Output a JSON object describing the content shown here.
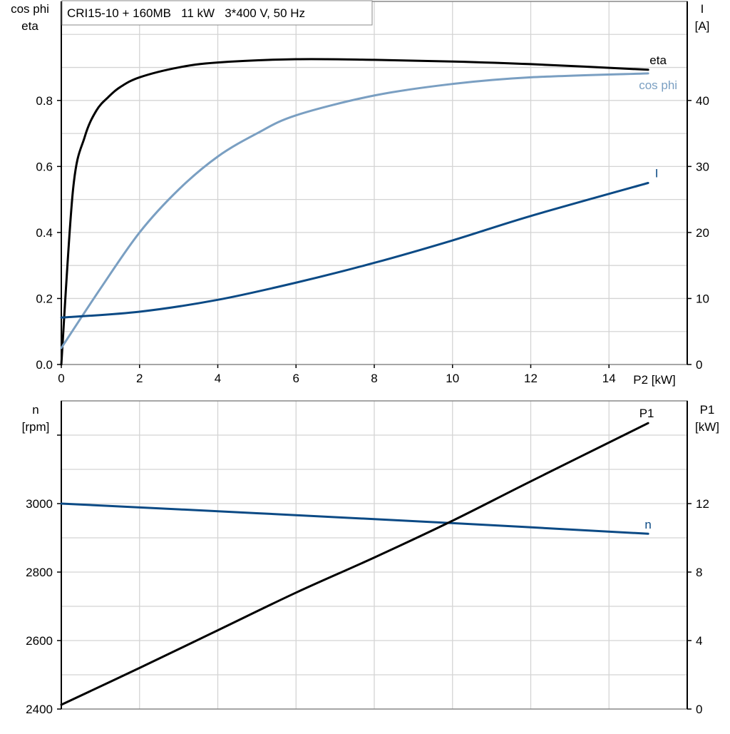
{
  "chart_data": [
    {
      "type": "line",
      "title": "CRI15-10 + 160MB   11 kW   3*400 V, 50 Hz",
      "xlabel": "P2 [kW]",
      "ylabel_left": [
        "cos phi",
        "eta"
      ],
      "ylabel_right": [
        "I",
        "[A]"
      ],
      "xlim": [
        0,
        16
      ],
      "ylim_left": [
        0,
        1.1
      ],
      "ylim_right": [
        0,
        55
      ],
      "x_ticks": [
        0,
        2,
        4,
        6,
        8,
        10,
        12,
        14
      ],
      "y_left_ticks": [
        "0.0",
        "0.2",
        "0.4",
        "0.6",
        "0.8"
      ],
      "y_right_ticks": [
        "0",
        "10",
        "20",
        "30",
        "40"
      ],
      "grid": true,
      "series": [
        {
          "name": "eta",
          "axis": "left",
          "color": "#000000",
          "x": [
            0,
            0.3,
            0.6,
            0.9,
            1.2,
            1.5,
            2,
            3,
            4,
            6,
            8,
            10,
            12,
            15
          ],
          "y": [
            0,
            0.53,
            0.69,
            0.77,
            0.81,
            0.84,
            0.87,
            0.9,
            0.915,
            0.925,
            0.923,
            0.918,
            0.91,
            0.893
          ]
        },
        {
          "name": "cos phi",
          "axis": "left",
          "color": "#7a9fc2",
          "x": [
            0,
            1,
            2,
            3,
            4,
            5,
            6,
            8,
            10,
            12,
            15
          ],
          "y": [
            0.05,
            0.23,
            0.4,
            0.53,
            0.63,
            0.7,
            0.755,
            0.815,
            0.85,
            0.87,
            0.882
          ]
        },
        {
          "name": "I",
          "axis": "right",
          "color": "#0b4a85",
          "x": [
            0,
            2,
            4,
            6,
            8,
            10,
            12,
            15
          ],
          "y": [
            7.1,
            8,
            9.8,
            12.4,
            15.4,
            18.8,
            22.5,
            27.5
          ]
        }
      ]
    },
    {
      "type": "line",
      "xlim": [
        0,
        16
      ],
      "ylabel_left": [
        "n",
        "[rpm]"
      ],
      "ylabel_right": [
        "P1",
        "[kW]"
      ],
      "ylim_left": [
        2400,
        3300
      ],
      "ylim_right": [
        0,
        18
      ],
      "y_left_ticks": [
        "2400",
        "2600",
        "2800",
        "3000"
      ],
      "y_right_ticks": [
        "0",
        "4",
        "8",
        "12"
      ],
      "grid": true,
      "series": [
        {
          "name": "n",
          "axis": "left",
          "color": "#0b4a85",
          "x": [
            0,
            5,
            10,
            15
          ],
          "y": [
            3000,
            2972,
            2943,
            2912
          ]
        },
        {
          "name": "P1",
          "axis": "right",
          "color": "#000000",
          "x": [
            0,
            2,
            4,
            6,
            8,
            10,
            12,
            15
          ],
          "y": [
            0.25,
            2.4,
            4.6,
            6.8,
            8.85,
            11.0,
            13.3,
            16.7
          ]
        }
      ]
    }
  ]
}
